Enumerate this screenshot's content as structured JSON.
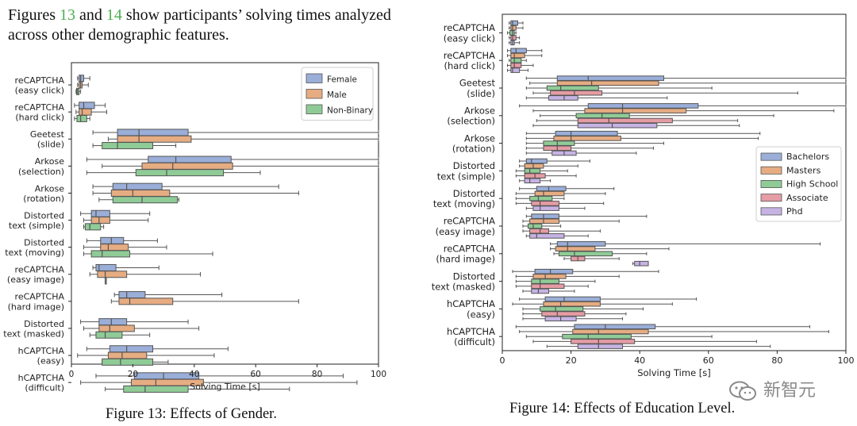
{
  "intro": {
    "pre": "Figures ",
    "ref1": "13",
    "mid": " and ",
    "ref2": "14",
    "post": " show participants’ solving times analyzed across other demographic features."
  },
  "colors": {
    "blue": "#9aaed8",
    "orange": "#e6ac82",
    "green": "#8fcb96",
    "pink": "#e59ca4",
    "purple": "#c6b3e4",
    "edge": "#555555",
    "ref": "#4caf50"
  },
  "watermark": "新智元",
  "chart_data": [
    {
      "type": "boxplot",
      "orientation": "horizontal",
      "caption": "Figure 13: Effects of Gender.",
      "xlabel": "Solving Time [s]",
      "xlim": [
        0,
        100
      ],
      "xticks": [
        0,
        20,
        40,
        60,
        80,
        100
      ],
      "legend_position": "top-right",
      "grid": false,
      "categories": [
        "reCAPTCHA\n(easy click)",
        "reCAPTCHA\n(hard click)",
        "Geetest\n(slide)",
        "Arkose\n(selection)",
        "Arkose\n(rotation)",
        "Distorted\ntext (simple)",
        "Distorted\ntext (moving)",
        "reCAPTCHA\n(easy image)",
        "reCAPTCHA\n(hard image)",
        "Distorted\ntext (masked)",
        "hCAPTCHA\n(easy)",
        "hCAPTCHA\n(difficult)"
      ],
      "series": [
        {
          "name": "Female",
          "color": "#9aaed8",
          "boxes": [
            [
              2,
              2.5,
              3,
              4,
              6
            ],
            [
              1,
              2.5,
              4,
              7.5,
              11
            ],
            [
              7,
              15,
              22,
              38,
              100
            ],
            [
              5,
              25,
              34,
              52,
              100
            ],
            [
              7,
              13.5,
              18,
              29.5,
              67.5
            ],
            [
              3,
              6.5,
              8,
              12.5,
              25.5
            ],
            [
              5,
              9.5,
              13,
              17,
              28
            ],
            [
              7,
              8,
              9,
              14.5,
              28.5
            ],
            [
              14,
              15.5,
              18,
              24,
              49
            ],
            [
              3,
              9,
              13,
              18,
              38
            ],
            [
              5,
              12.5,
              18,
              26.5,
              51
            ],
            [
              8,
              20.5,
              30,
              41.5,
              88.5
            ]
          ]
        },
        {
          "name": "Male",
          "color": "#e6ac82",
          "boxes": [
            [
              2,
              2.5,
              3,
              3.5,
              5.5
            ],
            [
              1.5,
              2.5,
              3.5,
              6.5,
              11.5
            ],
            [
              12,
              15,
              22,
              39,
              100
            ],
            [
              10,
              23,
              33,
              52.5,
              100
            ],
            [
              7,
              13,
              20,
              32,
              74
            ],
            [
              4,
              6.5,
              9,
              12.5,
              25
            ],
            [
              4,
              9.5,
              12,
              18.5,
              31
            ],
            [
              6,
              8.5,
              11,
              18,
              42
            ],
            [
              13,
              15.5,
              19,
              33,
              74
            ],
            [
              4,
              9,
              12.5,
              20.5,
              41.5
            ],
            [
              2,
              12,
              16.5,
              24.5,
              46.5
            ],
            [
              3,
              19.5,
              27.5,
              43,
              93
            ]
          ]
        },
        {
          "name": "Non-Binary",
          "color": "#8fcb96",
          "boxes": [
            [
              1.5,
              1.7,
              2,
              2.5,
              3
            ],
            [
              1,
              1.8,
              3,
              5,
              6
            ],
            [
              7,
              10,
              15,
              26.5,
              34
            ],
            [
              5,
              21,
              31,
              49.5,
              61.5
            ],
            [
              9,
              13.5,
              23,
              34.5,
              35
            ],
            [
              4,
              4.5,
              6,
              9.5,
              10.5
            ],
            [
              4,
              6.5,
              10,
              19,
              46
            ],
            [
              11,
              11,
              11,
              11,
              11
            ],
            null,
            [
              6,
              8,
              11,
              16.5,
              25.5
            ],
            [
              10,
              10,
              16,
              26.5,
              31.5
            ],
            [
              11,
              17,
              24,
              38,
              71
            ]
          ]
        }
      ]
    },
    {
      "type": "boxplot",
      "orientation": "horizontal",
      "caption": "Figure 14: Effects of Education Level.",
      "xlabel": "Solving Time [s]",
      "xlim": [
        0,
        100
      ],
      "xticks": [
        0,
        20,
        40,
        60,
        80,
        100
      ],
      "legend_position": "center-right",
      "grid": false,
      "categories": [
        "reCAPTCHA\n(easy click)",
        "reCAPTCHA\n(hard click)",
        "Geetest\n(slide)",
        "Arkose\n(selection)",
        "Arkose\n(rotation)",
        "Distorted\ntext (simple)",
        "Distorted\ntext (moving)",
        "reCAPTCHA\n(easy image)",
        "reCAPTCHA\n(hard image)",
        "Distorted\ntext (masked)",
        "hCAPTCHA\n(easy)",
        "hCAPTCHA\n(difficult)"
      ],
      "series": [
        {
          "name": "Bachelors",
          "color": "#9aaed8",
          "boxes": [
            [
              2,
              2.5,
              3,
              4.5,
              6
            ],
            [
              1.5,
              2.5,
              4,
              7,
              11.5
            ],
            [
              7,
              16,
              25,
              47,
              100
            ],
            [
              5,
              25,
              35,
              57,
              100
            ],
            [
              7,
              15.5,
              20,
              33.5,
              75
            ],
            [
              5,
              7,
              8.5,
              13,
              25.5
            ],
            [
              5,
              10,
              13.5,
              18.5,
              32.5
            ],
            [
              7,
              8.5,
              12,
              16.5,
              42
            ],
            [
              14,
              16,
              19,
              30,
              92.5
            ],
            [
              3,
              9.5,
              14,
              20.5,
              45.5
            ],
            [
              5,
              12.5,
              18,
              28.5,
              56.5
            ],
            [
              4,
              21,
              30,
              44.5,
              89.5
            ]
          ]
        },
        {
          "name": "Masters",
          "color": "#e6ac82",
          "boxes": [
            [
              2,
              2.5,
              3,
              4,
              6
            ],
            [
              1.5,
              2.5,
              3.5,
              6.5,
              11.5
            ],
            [
              8,
              16,
              26,
              45.5,
              100
            ],
            [
              9,
              24,
              35,
              53.5,
              96.5
            ],
            [
              7,
              15,
              20,
              34.5,
              74.5
            ],
            [
              5,
              6.5,
              9,
              12,
              22
            ],
            [
              4,
              9.5,
              12,
              18,
              30
            ],
            [
              6,
              8,
              12,
              16.5,
              34
            ],
            [
              14,
              15.5,
              19,
              27,
              48.5
            ],
            [
              4,
              9,
              12.5,
              18.5,
              34
            ],
            [
              3,
              12,
              17,
              28.5,
              49.5
            ],
            [
              5,
              20.5,
              28,
              42.5,
              95
            ]
          ]
        },
        {
          "name": "High School",
          "color": "#8fcb96",
          "boxes": [
            [
              1.5,
              2.2,
              3,
              3.5,
              4
            ],
            [
              2,
              2.5,
              3.5,
              5.5,
              7
            ],
            [
              7,
              13,
              17,
              28,
              61
            ],
            [
              11,
              21.5,
              29,
              37,
              79
            ],
            [
              7,
              12,
              16,
              21,
              47
            ],
            [
              4,
              6.5,
              8,
              11,
              19
            ],
            [
              4,
              8,
              10.5,
              14.5,
              18
            ],
            [
              6,
              7.5,
              9,
              11.5,
              17
            ],
            [
              15,
              16.5,
              21,
              32,
              42
            ],
            [
              4,
              8.5,
              11,
              16.5,
              27
            ],
            [
              6,
              11,
              15.5,
              23.5,
              41
            ],
            [
              7,
              17.5,
              25,
              37.5,
              61
            ]
          ]
        },
        {
          "name": "Associate",
          "color": "#e59ca4",
          "boxes": [
            [
              2,
              2.5,
              3,
              4,
              5
            ],
            [
              1.5,
              2.5,
              3.5,
              5.5,
              9
            ],
            [
              9,
              14,
              21,
              29,
              86
            ],
            [
              10,
              22,
              31,
              49.5,
              68.5
            ],
            [
              7,
              12,
              16,
              20,
              44
            ],
            [
              4,
              6.5,
              9.5,
              12.5,
              21.5
            ],
            [
              4,
              8.5,
              11,
              16.5,
              29.5
            ],
            [
              6,
              8,
              11,
              13.5,
              28.5
            ],
            [
              18,
              20,
              22,
              24,
              34
            ],
            [
              4,
              8.5,
              11,
              18,
              25
            ],
            [
              6,
              11.5,
              16,
              24,
              36
            ],
            [
              9,
              20,
              28,
              38.5,
              74
            ]
          ]
        },
        {
          "name": "Phd",
          "color": "#c6b3e4",
          "boxes": [
            [
              2,
              2.5,
              3,
              3.5,
              5
            ],
            [
              1.5,
              2.5,
              3,
              5,
              7.5
            ],
            [
              7,
              13.5,
              18,
              22,
              48
            ],
            [
              9,
              22,
              32,
              45,
              69
            ],
            [
              7,
              14.5,
              18,
              21.5,
              39
            ],
            [
              5,
              6.5,
              8,
              11,
              14
            ],
            [
              7,
              9,
              11,
              16.5,
              24
            ],
            [
              7,
              8,
              10,
              18,
              25
            ],
            [
              38,
              38.5,
              40,
              42.5,
              42.5
            ],
            [
              6,
              8.5,
              10.5,
              13.5,
              21
            ],
            [
              6,
              12.5,
              17,
              21.5,
              35
            ],
            [
              13,
              22,
              28,
              35,
              78
            ]
          ]
        }
      ]
    }
  ]
}
